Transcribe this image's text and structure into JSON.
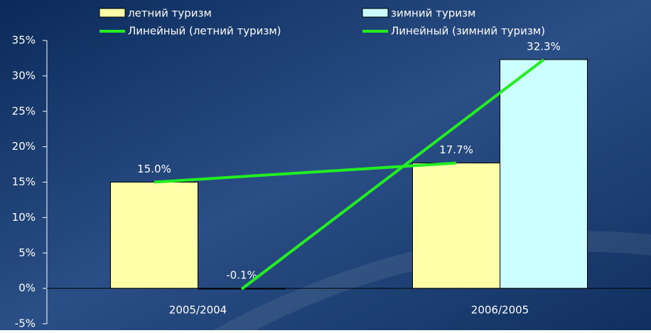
{
  "chart_data": {
    "type": "bar",
    "categories": [
      "2005/2004",
      "2006/2005"
    ],
    "series": [
      {
        "name": "летний туризм",
        "color": "#ffffaa",
        "values": [
          15.0,
          17.7
        ],
        "value_labels": [
          "15.0%",
          "17.7%"
        ]
      },
      {
        "name": "зимний туризм",
        "color": "#ccffff",
        "values": [
          -0.1,
          32.3
        ],
        "value_labels": [
          "-0.1%",
          "32.3%"
        ]
      }
    ],
    "trendlines": [
      {
        "name": "Линейный (летний туризм)",
        "color": "#22ee22",
        "series": 0
      },
      {
        "name": "Линейный (зимний туризм)",
        "color": "#22ee22",
        "series": 1
      }
    ],
    "ylim": [
      -5,
      35
    ],
    "yticks": [
      {
        "value": -5,
        "label": "-5%"
      },
      {
        "value": 0,
        "label": "0%"
      },
      {
        "value": 5,
        "label": "5%"
      },
      {
        "value": 10,
        "label": "10%"
      },
      {
        "value": 15,
        "label": "15%"
      },
      {
        "value": 20,
        "label": "20%"
      },
      {
        "value": 25,
        "label": "25%"
      },
      {
        "value": 30,
        "label": "30%"
      },
      {
        "value": 35,
        "label": "35%"
      }
    ]
  }
}
